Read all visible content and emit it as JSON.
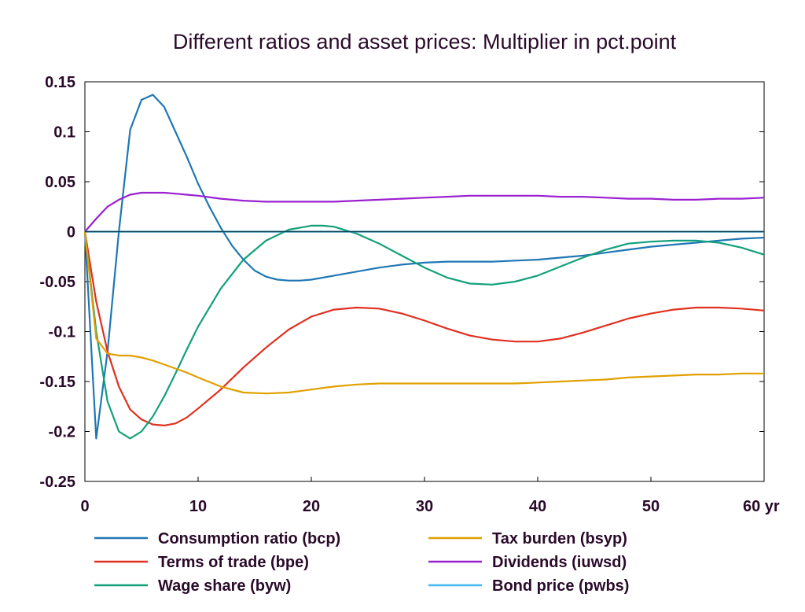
{
  "chart_data": {
    "type": "line",
    "title": "Different ratios and asset prices: Multiplier in pct.point",
    "xlabel": "",
    "ylabel": "",
    "x_unit_label": "yr",
    "xlim": [
      0,
      60
    ],
    "ylim": [
      -0.25,
      0.15
    ],
    "x_ticks": [
      0,
      10,
      20,
      30,
      40,
      50,
      60
    ],
    "x_tick_labels": [
      "0",
      "10",
      "20",
      "30",
      "40",
      "50",
      "60 yr"
    ],
    "y_ticks": [
      0.15,
      0.1,
      0.05,
      0,
      -0.05,
      -0.1,
      -0.15,
      -0.2,
      -0.25
    ],
    "y_tick_labels": [
      "0.15",
      "0.1",
      "0.05",
      "0",
      "-0.05",
      "-0.1",
      "-0.15",
      "-0.2",
      "-0.25"
    ],
    "grid": false,
    "zero_line": true,
    "legend_position": "bottom",
    "series": [
      {
        "name": "Consumption ratio (bcp)",
        "color": "#1f77b4",
        "x": [
          0,
          1,
          2,
          3,
          4,
          5,
          6,
          7,
          8,
          9,
          10,
          11,
          12,
          13,
          14,
          15,
          16,
          17,
          18,
          19,
          20,
          22,
          24,
          26,
          28,
          30,
          32,
          34,
          36,
          38,
          40,
          42,
          44,
          46,
          48,
          50,
          52,
          54,
          56,
          58,
          60
        ],
        "y": [
          0,
          -0.207,
          -0.12,
          0.0,
          0.102,
          0.132,
          0.137,
          0.125,
          0.1,
          0.075,
          0.048,
          0.025,
          0.004,
          -0.014,
          -0.028,
          -0.039,
          -0.045,
          -0.048,
          -0.049,
          -0.049,
          -0.048,
          -0.044,
          -0.04,
          -0.036,
          -0.033,
          -0.031,
          -0.03,
          -0.03,
          -0.03,
          -0.029,
          -0.028,
          -0.026,
          -0.024,
          -0.021,
          -0.018,
          -0.015,
          -0.013,
          -0.011,
          -0.009,
          -0.007,
          -0.006
        ]
      },
      {
        "name": "Terms of trade (bpe)",
        "color": "#e03020",
        "x": [
          0,
          1,
          2,
          3,
          4,
          5,
          6,
          7,
          8,
          9,
          10,
          12,
          14,
          16,
          18,
          20,
          22,
          24,
          26,
          28,
          30,
          32,
          34,
          36,
          38,
          40,
          42,
          44,
          46,
          48,
          50,
          52,
          54,
          56,
          58,
          60
        ],
        "y": [
          0,
          -0.07,
          -0.12,
          -0.155,
          -0.178,
          -0.188,
          -0.193,
          -0.194,
          -0.192,
          -0.186,
          -0.177,
          -0.158,
          -0.136,
          -0.116,
          -0.098,
          -0.085,
          -0.078,
          -0.076,
          -0.077,
          -0.082,
          -0.089,
          -0.097,
          -0.104,
          -0.108,
          -0.11,
          -0.11,
          -0.107,
          -0.101,
          -0.094,
          -0.087,
          -0.082,
          -0.078,
          -0.076,
          -0.076,
          -0.077,
          -0.079
        ]
      },
      {
        "name": "Wage share (byw)",
        "color": "#12a07a",
        "x": [
          0,
          1,
          2,
          3,
          4,
          5,
          6,
          7,
          8,
          9,
          10,
          12,
          14,
          16,
          18,
          20,
          21,
          22,
          24,
          26,
          28,
          30,
          32,
          34,
          36,
          38,
          40,
          42,
          44,
          46,
          48,
          50,
          52,
          54,
          56,
          58,
          60
        ],
        "y": [
          0,
          -0.1,
          -0.17,
          -0.2,
          -0.207,
          -0.2,
          -0.185,
          -0.165,
          -0.142,
          -0.118,
          -0.095,
          -0.057,
          -0.028,
          -0.009,
          0.002,
          0.006,
          0.006,
          0.005,
          -0.002,
          -0.012,
          -0.024,
          -0.036,
          -0.046,
          -0.052,
          -0.053,
          -0.05,
          -0.044,
          -0.035,
          -0.026,
          -0.018,
          -0.012,
          -0.01,
          -0.009,
          -0.009,
          -0.011,
          -0.016,
          -0.023
        ]
      },
      {
        "name": "Tax burden (bsyp)",
        "color": "#e0a000",
        "x": [
          0,
          1,
          2,
          3,
          4,
          5,
          6,
          7,
          8,
          9,
          10,
          12,
          14,
          16,
          18,
          20,
          22,
          24,
          26,
          28,
          30,
          32,
          34,
          36,
          38,
          40,
          42,
          44,
          46,
          48,
          50,
          52,
          54,
          56,
          58,
          60
        ],
        "y": [
          0,
          -0.107,
          -0.122,
          -0.124,
          -0.124,
          -0.126,
          -0.129,
          -0.133,
          -0.137,
          -0.141,
          -0.146,
          -0.155,
          -0.161,
          -0.162,
          -0.161,
          -0.158,
          -0.155,
          -0.153,
          -0.152,
          -0.152,
          -0.152,
          -0.152,
          -0.152,
          -0.152,
          -0.152,
          -0.151,
          -0.15,
          -0.149,
          -0.148,
          -0.146,
          -0.145,
          -0.144,
          -0.143,
          -0.143,
          -0.142,
          -0.142
        ]
      },
      {
        "name": "Dividends (iuwsd)",
        "color": "#9a20d0",
        "x": [
          0,
          1,
          2,
          3,
          4,
          5,
          6,
          7,
          8,
          9,
          10,
          12,
          14,
          16,
          18,
          20,
          22,
          24,
          26,
          28,
          30,
          32,
          34,
          36,
          38,
          40,
          42,
          44,
          46,
          48,
          50,
          52,
          54,
          56,
          58,
          60
        ],
        "y": [
          0,
          0.013,
          0.025,
          0.032,
          0.037,
          0.039,
          0.039,
          0.039,
          0.038,
          0.037,
          0.036,
          0.033,
          0.031,
          0.03,
          0.03,
          0.03,
          0.03,
          0.031,
          0.032,
          0.033,
          0.034,
          0.035,
          0.036,
          0.036,
          0.036,
          0.036,
          0.035,
          0.035,
          0.034,
          0.033,
          0.033,
          0.032,
          0.032,
          0.033,
          0.033,
          0.034
        ]
      },
      {
        "name": "Bond price (pwbs)",
        "color": "#40b8f0",
        "x": [
          0,
          60
        ],
        "y": [
          0,
          0
        ]
      }
    ]
  }
}
